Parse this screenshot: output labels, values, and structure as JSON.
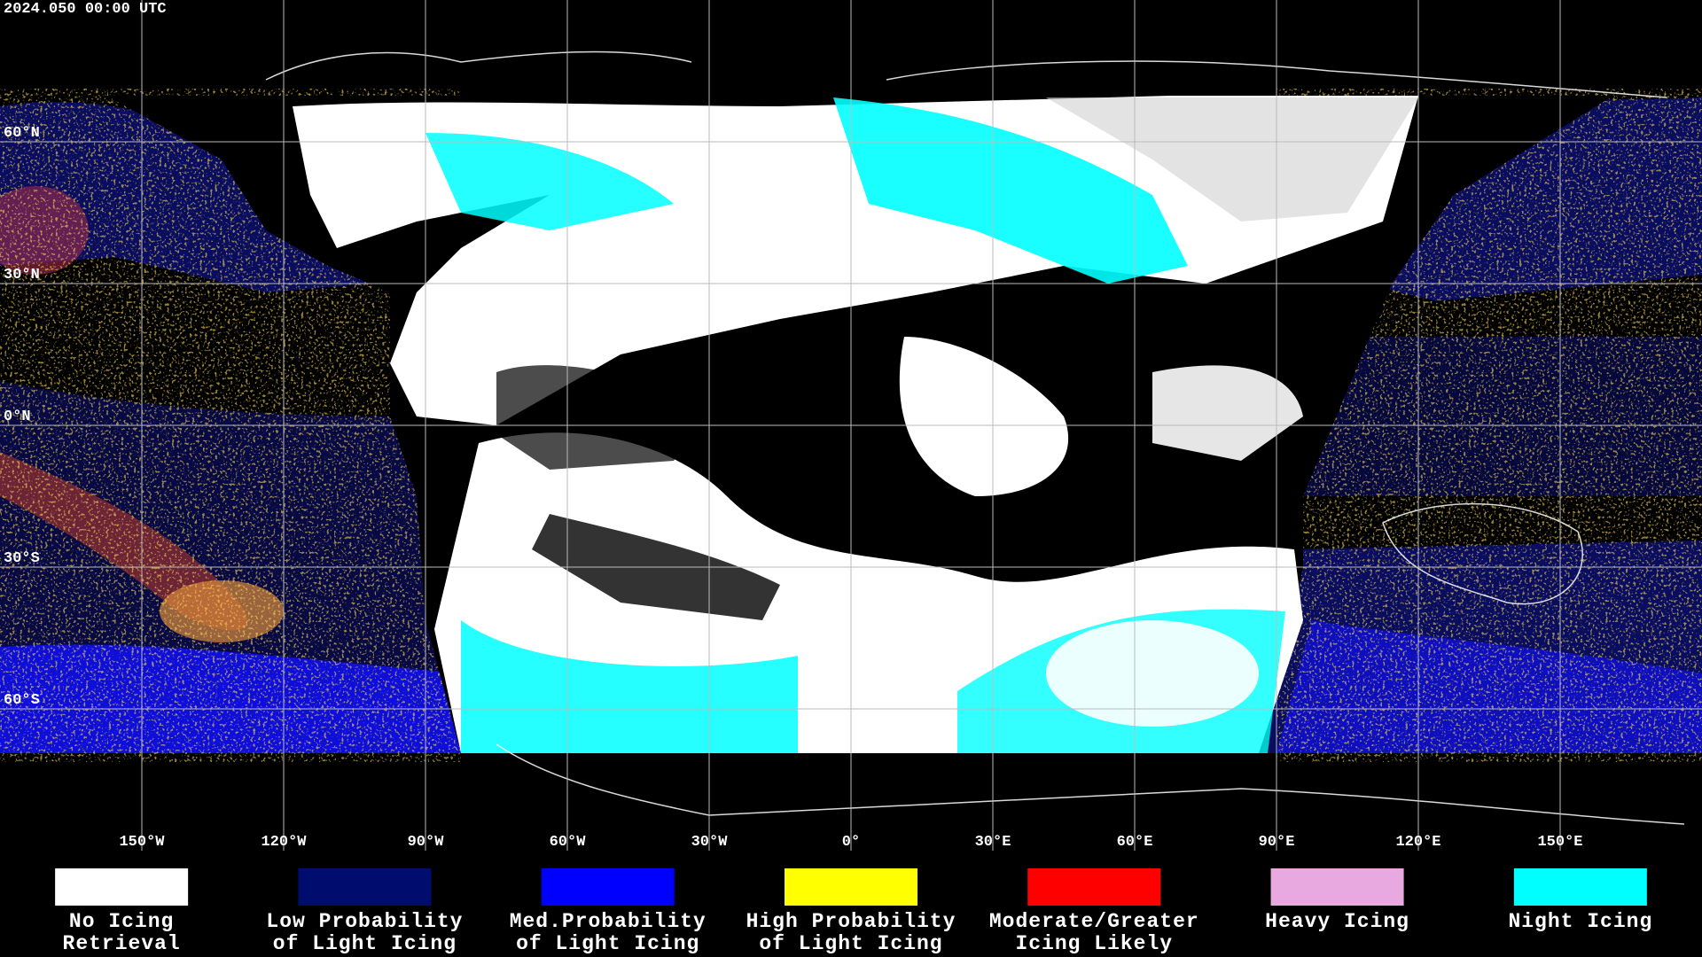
{
  "header": {
    "title": "2024.050 00:00 UTC"
  },
  "map": {
    "lat_labels": [
      "60°N",
      "30°N",
      "0°N",
      "30°S",
      "60°S"
    ],
    "lon_labels": [
      "150°W",
      "120°W",
      "90°W",
      "60°W",
      "30°W",
      "0°",
      "30°E",
      "60°E",
      "90°E",
      "120°E",
      "150°E"
    ]
  },
  "legend": [
    {
      "lines": [
        "No Icing",
        "Retrieval"
      ],
      "color": "#ffffff"
    },
    {
      "lines": [
        "Low Probability",
        "of Light Icing"
      ],
      "color": "#000c6e"
    },
    {
      "lines": [
        "Med.Probability",
        "of Light Icing"
      ],
      "color": "#0000ff"
    },
    {
      "lines": [
        "High Probability",
        "of Light Icing"
      ],
      "color": "#ffff00"
    },
    {
      "lines": [
        "Moderate/Greater",
        "Icing Likely"
      ],
      "color": "#ff0000"
    },
    {
      "lines": [
        "Heavy Icing"
      ],
      "color": "#e8a8e0"
    },
    {
      "lines": [
        "Night Icing"
      ],
      "color": "#00ffff"
    }
  ]
}
